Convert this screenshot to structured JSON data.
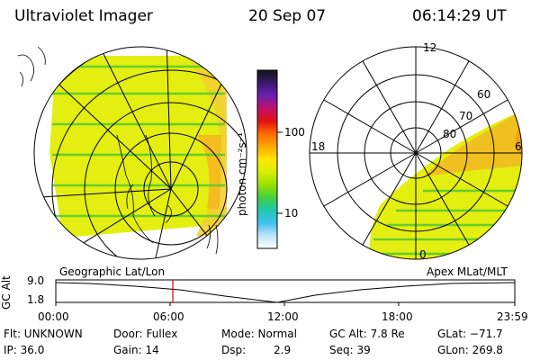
{
  "header": {
    "title": "Ultraviolet Imager",
    "date": "20 Sep 07",
    "time": "06:14:29 UT"
  },
  "colorbar": {
    "unit_label": "photon cm⁻²s⁻¹",
    "tick_labels": [
      "100",
      "10"
    ],
    "colors": [
      "#111111",
      "#3a1a6e",
      "#6a1fb0",
      "#c0106a",
      "#e01010",
      "#ff6a00",
      "#ffa800",
      "#ffe600",
      "#d8f000",
      "#9ae000",
      "#44d040",
      "#20c8b0",
      "#40c0f0",
      "#c0e4f8",
      "#ffffff"
    ]
  },
  "left_panel": {
    "caption": "Geographic Lat/Lon"
  },
  "right_panel": {
    "caption": "Apex MLat/MLT",
    "mlt_labels": [
      "12",
      "18",
      "6",
      "0"
    ],
    "mlat_labels": [
      "60",
      "70",
      "80"
    ]
  },
  "timeline": {
    "axis_label": "GC Alt",
    "y_ticks": [
      "9.0",
      "1.8"
    ],
    "x_ticks": [
      "00:00",
      "06:00",
      "12:00",
      "18:00",
      "23:59"
    ],
    "marker_color": "#e00000"
  },
  "status": {
    "filter": "Flt: UNKNOWN",
    "ip": "IP: 36.0",
    "door": "Door: Fullex",
    "gain": "Gain: 14",
    "mode": "Mode: Normal",
    "dsp_label": "Dsp:",
    "dsp_value": "2.9",
    "gc_alt": "GC Alt: 7.8 Re",
    "seq": "Seq: 39",
    "glat": "GLat: −71.7",
    "glon": "GLon: 269.8"
  }
}
